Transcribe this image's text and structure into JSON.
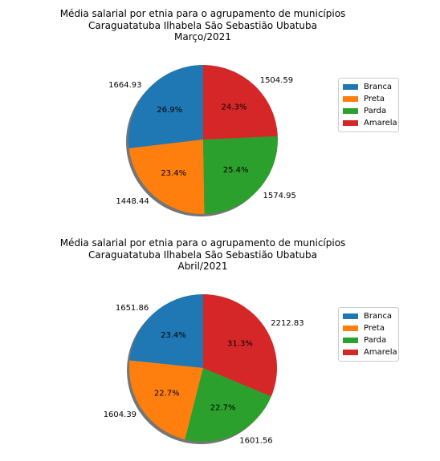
{
  "colors": {
    "Branca": "#1f77b4",
    "Preta": "#ff7f0e",
    "Parda": "#2ca02c",
    "Amarela": "#d62728"
  },
  "chart_data": [
    {
      "type": "pie",
      "title_lines": [
        "Média salarial por etnia para o agrupamento de municípios",
        "Caraguatatuba Ilhabela São Sebastião Ubatuba",
        "Março/2021"
      ],
      "categories": [
        "Branca",
        "Preta",
        "Parda",
        "Amarela"
      ],
      "values": [
        1664.93,
        1448.44,
        1574.95,
        1504.59
      ],
      "value_labels": [
        "1664.93",
        "1448.44",
        "1574.95",
        "1504.59"
      ],
      "percent_labels": [
        "26.9%",
        "23.4%",
        "25.4%",
        "24.3%"
      ],
      "start_angle_deg": 90,
      "shadow": true,
      "legend": {
        "entries": [
          "Branca",
          "Preta",
          "Parda",
          "Amarela"
        ],
        "placement": "right"
      }
    },
    {
      "type": "pie",
      "title_lines": [
        "Média salarial por etnia para o agrupamento de municípios",
        "Caraguatatuba Ilhabela São Sebastião Ubatuba",
        "Abril/2021"
      ],
      "categories": [
        "Branca",
        "Preta",
        "Parda",
        "Amarela"
      ],
      "values": [
        1651.86,
        1604.39,
        1601.56,
        2212.83
      ],
      "value_labels": [
        "1651.86",
        "1604.39",
        "1601.56",
        "2212.83"
      ],
      "percent_labels": [
        "23.4%",
        "22.7%",
        "22.7%",
        "31.3%"
      ],
      "start_angle_deg": 90,
      "shadow": true,
      "legend": {
        "entries": [
          "Branca",
          "Preta",
          "Parda",
          "Amarela"
        ],
        "placement": "right"
      }
    }
  ]
}
